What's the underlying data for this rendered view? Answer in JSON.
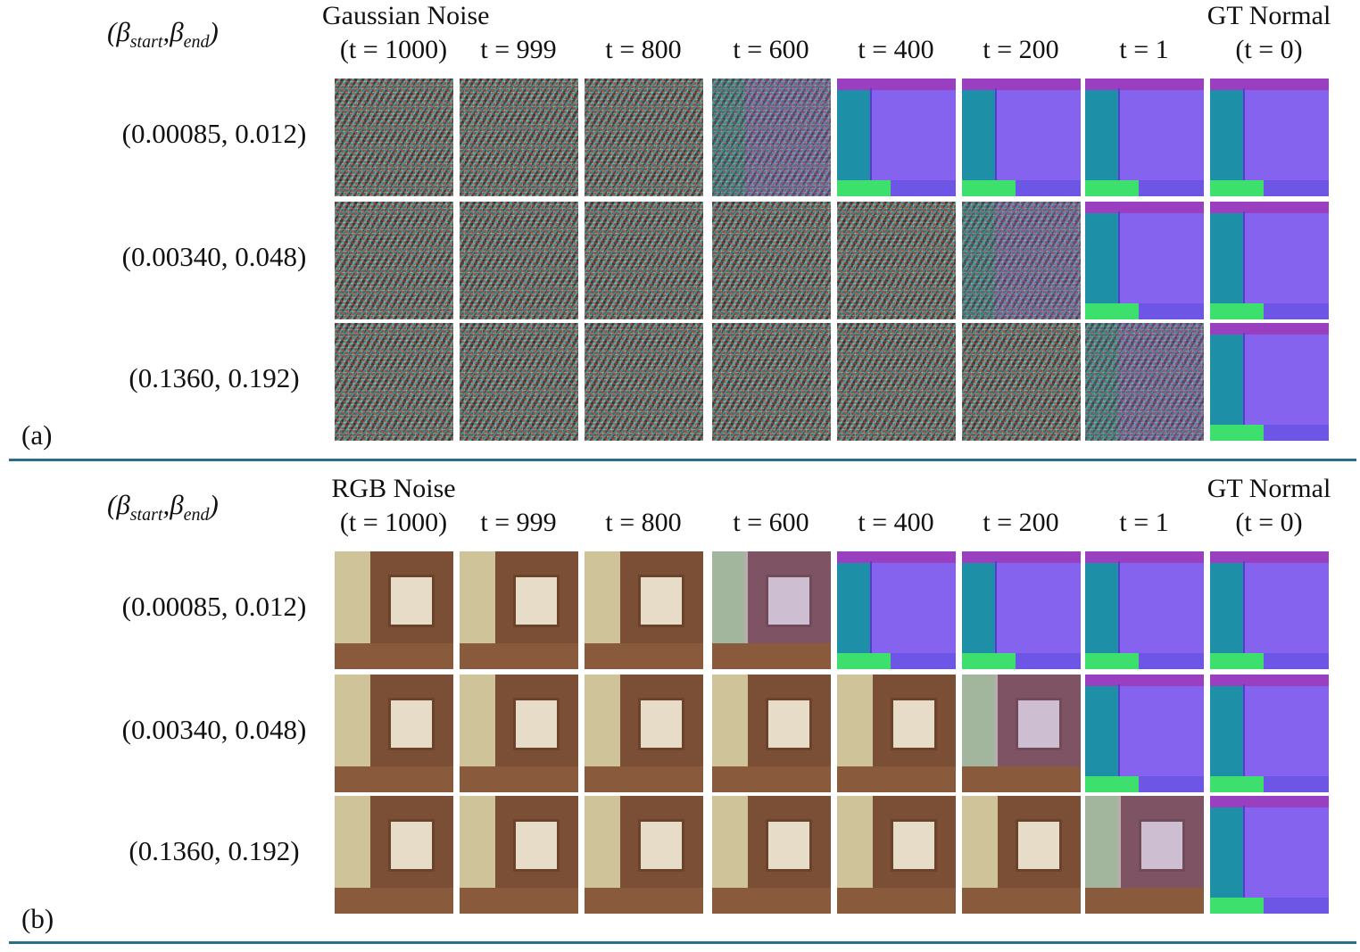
{
  "panels": [
    {
      "tag": "(a)",
      "beta_label": {
        "prefix": "(β",
        "start_sub": "start",
        "sep": ",β",
        "end_sub": "end",
        "suffix": ")"
      },
      "columns": [
        {
          "line1": "Gaussian Noise",
          "line2": "(t = 1000)"
        },
        {
          "line1": "",
          "line2": "t = 999"
        },
        {
          "line1": "",
          "line2": "t = 800"
        },
        {
          "line1": "",
          "line2": "t = 600"
        },
        {
          "line1": "",
          "line2": "t = 400"
        },
        {
          "line1": "",
          "line2": "t = 200"
        },
        {
          "line1": "",
          "line2": "t = 1"
        },
        {
          "line1": "GT Normal",
          "line2": "(t = 0)"
        }
      ],
      "rows": [
        {
          "label": "(0.00085, 0.012)",
          "normal_from_col": 3
        },
        {
          "label": "(0.00340, 0.048)",
          "normal_from_col": 5
        },
        {
          "label": "(0.1360, 0.192)",
          "normal_from_col": 6
        }
      ]
    },
    {
      "tag": "(b)",
      "beta_label": {
        "prefix": "(β",
        "start_sub": "start",
        "sep": ",β",
        "end_sub": "end",
        "suffix": ")"
      },
      "columns": [
        {
          "line1": "RGB Noise",
          "line2": "(t = 1000)"
        },
        {
          "line1": "",
          "line2": "t = 999"
        },
        {
          "line1": "",
          "line2": "t = 800"
        },
        {
          "line1": "",
          "line2": "t = 600"
        },
        {
          "line1": "",
          "line2": "t = 400"
        },
        {
          "line1": "",
          "line2": "t = 200"
        },
        {
          "line1": "",
          "line2": "t = 1"
        },
        {
          "line1": "GT Normal",
          "line2": "(t = 0)"
        }
      ],
      "rows": [
        {
          "label": "(0.00085, 0.012)",
          "normal_from_col": 3
        },
        {
          "label": "(0.00340, 0.048)",
          "normal_from_col": 5
        },
        {
          "label": "(0.1360, 0.192)",
          "normal_from_col": 6
        }
      ]
    }
  ],
  "colors": {
    "divider": "#2a6f85"
  }
}
